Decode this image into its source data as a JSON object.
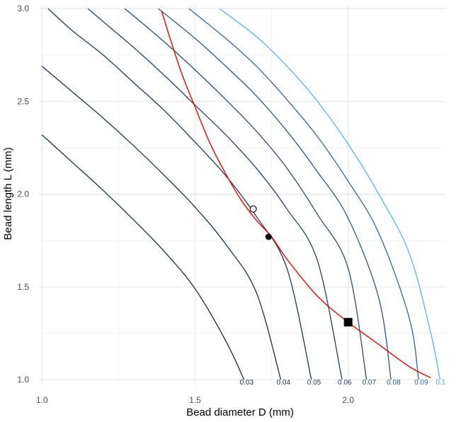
{
  "chart_data": {
    "type": "line",
    "title": "",
    "xlabel": "Bead diameter D (mm)",
    "ylabel": "Bead length L (mm)",
    "xlim": [
      0.99,
      2.32
    ],
    "ylim": [
      0.97,
      3.02
    ],
    "x_ticks": [
      1.0,
      1.5,
      2.0
    ],
    "x_tick_labels": [
      "1.0",
      "1.5",
      "2.0"
    ],
    "y_ticks": [
      1.0,
      1.5,
      2.0,
      2.5,
      3.0
    ],
    "y_tick_labels": [
      "1.0",
      "1.5",
      "2.0",
      "2.5",
      "3.0"
    ],
    "grid": true,
    "contours": [
      {
        "label": "0.03",
        "color": "#132b43",
        "points": [
          [
            1.0,
            2.32
          ],
          [
            1.1,
            2.17
          ],
          [
            1.2,
            2.02
          ],
          [
            1.3,
            1.86
          ],
          [
            1.4,
            1.69
          ],
          [
            1.5,
            1.49
          ],
          [
            1.6,
            1.21
          ],
          [
            1.66,
            1.0
          ]
        ]
      },
      {
        "label": "0.04",
        "color": "#17324e",
        "points": [
          [
            1.0,
            2.69
          ],
          [
            1.1,
            2.55
          ],
          [
            1.2,
            2.41
          ],
          [
            1.3,
            2.26
          ],
          [
            1.4,
            2.1
          ],
          [
            1.5,
            1.93
          ],
          [
            1.6,
            1.73
          ],
          [
            1.7,
            1.47
          ],
          [
            1.78,
            1.0
          ]
        ]
      },
      {
        "label": "0.05",
        "color": "#1b3a5a",
        "points": [
          [
            1.02,
            3.0
          ],
          [
            1.1,
            2.88
          ],
          [
            1.2,
            2.75
          ],
          [
            1.3,
            2.6
          ],
          [
            1.4,
            2.45
          ],
          [
            1.5,
            2.28
          ],
          [
            1.6,
            2.1
          ],
          [
            1.7,
            1.88
          ],
          [
            1.8,
            1.6
          ],
          [
            1.88,
            1.0
          ]
        ]
      },
      {
        "label": "0.06",
        "color": "#1f4266",
        "points": [
          [
            1.15,
            3.0
          ],
          [
            1.2,
            2.93
          ],
          [
            1.3,
            2.79
          ],
          [
            1.4,
            2.64
          ],
          [
            1.5,
            2.48
          ],
          [
            1.6,
            2.32
          ],
          [
            1.7,
            2.14
          ],
          [
            1.8,
            1.92
          ],
          [
            1.9,
            1.64
          ],
          [
            1.98,
            1.0
          ]
        ]
      },
      {
        "label": "0.07",
        "color": "#244c76",
        "points": [
          [
            1.27,
            3.0
          ],
          [
            1.3,
            2.96
          ],
          [
            1.4,
            2.82
          ],
          [
            1.5,
            2.67
          ],
          [
            1.6,
            2.51
          ],
          [
            1.7,
            2.34
          ],
          [
            1.8,
            2.14
          ],
          [
            1.9,
            1.89
          ],
          [
            2.0,
            1.6
          ],
          [
            2.06,
            1.0
          ]
        ]
      },
      {
        "label": "0.08",
        "color": "#2a5788",
        "points": [
          [
            1.38,
            3.0
          ],
          [
            1.5,
            2.84
          ],
          [
            1.6,
            2.69
          ],
          [
            1.7,
            2.53
          ],
          [
            1.8,
            2.34
          ],
          [
            1.9,
            2.12
          ],
          [
            2.0,
            1.87
          ],
          [
            2.1,
            1.44
          ],
          [
            2.14,
            1.0
          ]
        ]
      },
      {
        "label": "0.09",
        "color": "#3166a0",
        "points": [
          [
            1.48,
            3.0
          ],
          [
            1.6,
            2.84
          ],
          [
            1.7,
            2.69
          ],
          [
            1.8,
            2.51
          ],
          [
            1.9,
            2.31
          ],
          [
            2.0,
            2.07
          ],
          [
            2.1,
            1.79
          ],
          [
            2.2,
            1.33
          ],
          [
            2.23,
            1.0
          ]
        ]
      },
      {
        "label": "0.1",
        "color": "#56b1f7",
        "points": [
          [
            1.58,
            3.0
          ],
          [
            1.7,
            2.85
          ],
          [
            1.8,
            2.69
          ],
          [
            1.9,
            2.5
          ],
          [
            2.0,
            2.27
          ],
          [
            2.1,
            2.0
          ],
          [
            2.2,
            1.68
          ],
          [
            2.27,
            1.25
          ],
          [
            2.3,
            1.0
          ]
        ]
      }
    ],
    "constraint_curve": {
      "color": "#ff0000",
      "points": [
        [
          1.39,
          2.99
        ],
        [
          1.45,
          2.68
        ],
        [
          1.5,
          2.47
        ],
        [
          1.55,
          2.27
        ],
        [
          1.6,
          2.11
        ],
        [
          1.65,
          1.97
        ],
        [
          1.7,
          1.86
        ],
        [
          1.75,
          1.77
        ],
        [
          1.8,
          1.65
        ],
        [
          1.9,
          1.45
        ],
        [
          2.0,
          1.31
        ],
        [
          2.1,
          1.19
        ],
        [
          2.2,
          1.07
        ],
        [
          2.27,
          1.01
        ]
      ]
    },
    "markers": [
      {
        "shape": "open-circle",
        "x": 1.69,
        "y": 1.92
      },
      {
        "shape": "filled-circle",
        "x": 1.74,
        "y": 1.77
      },
      {
        "shape": "filled-square",
        "x": 2.0,
        "y": 1.31
      }
    ]
  }
}
